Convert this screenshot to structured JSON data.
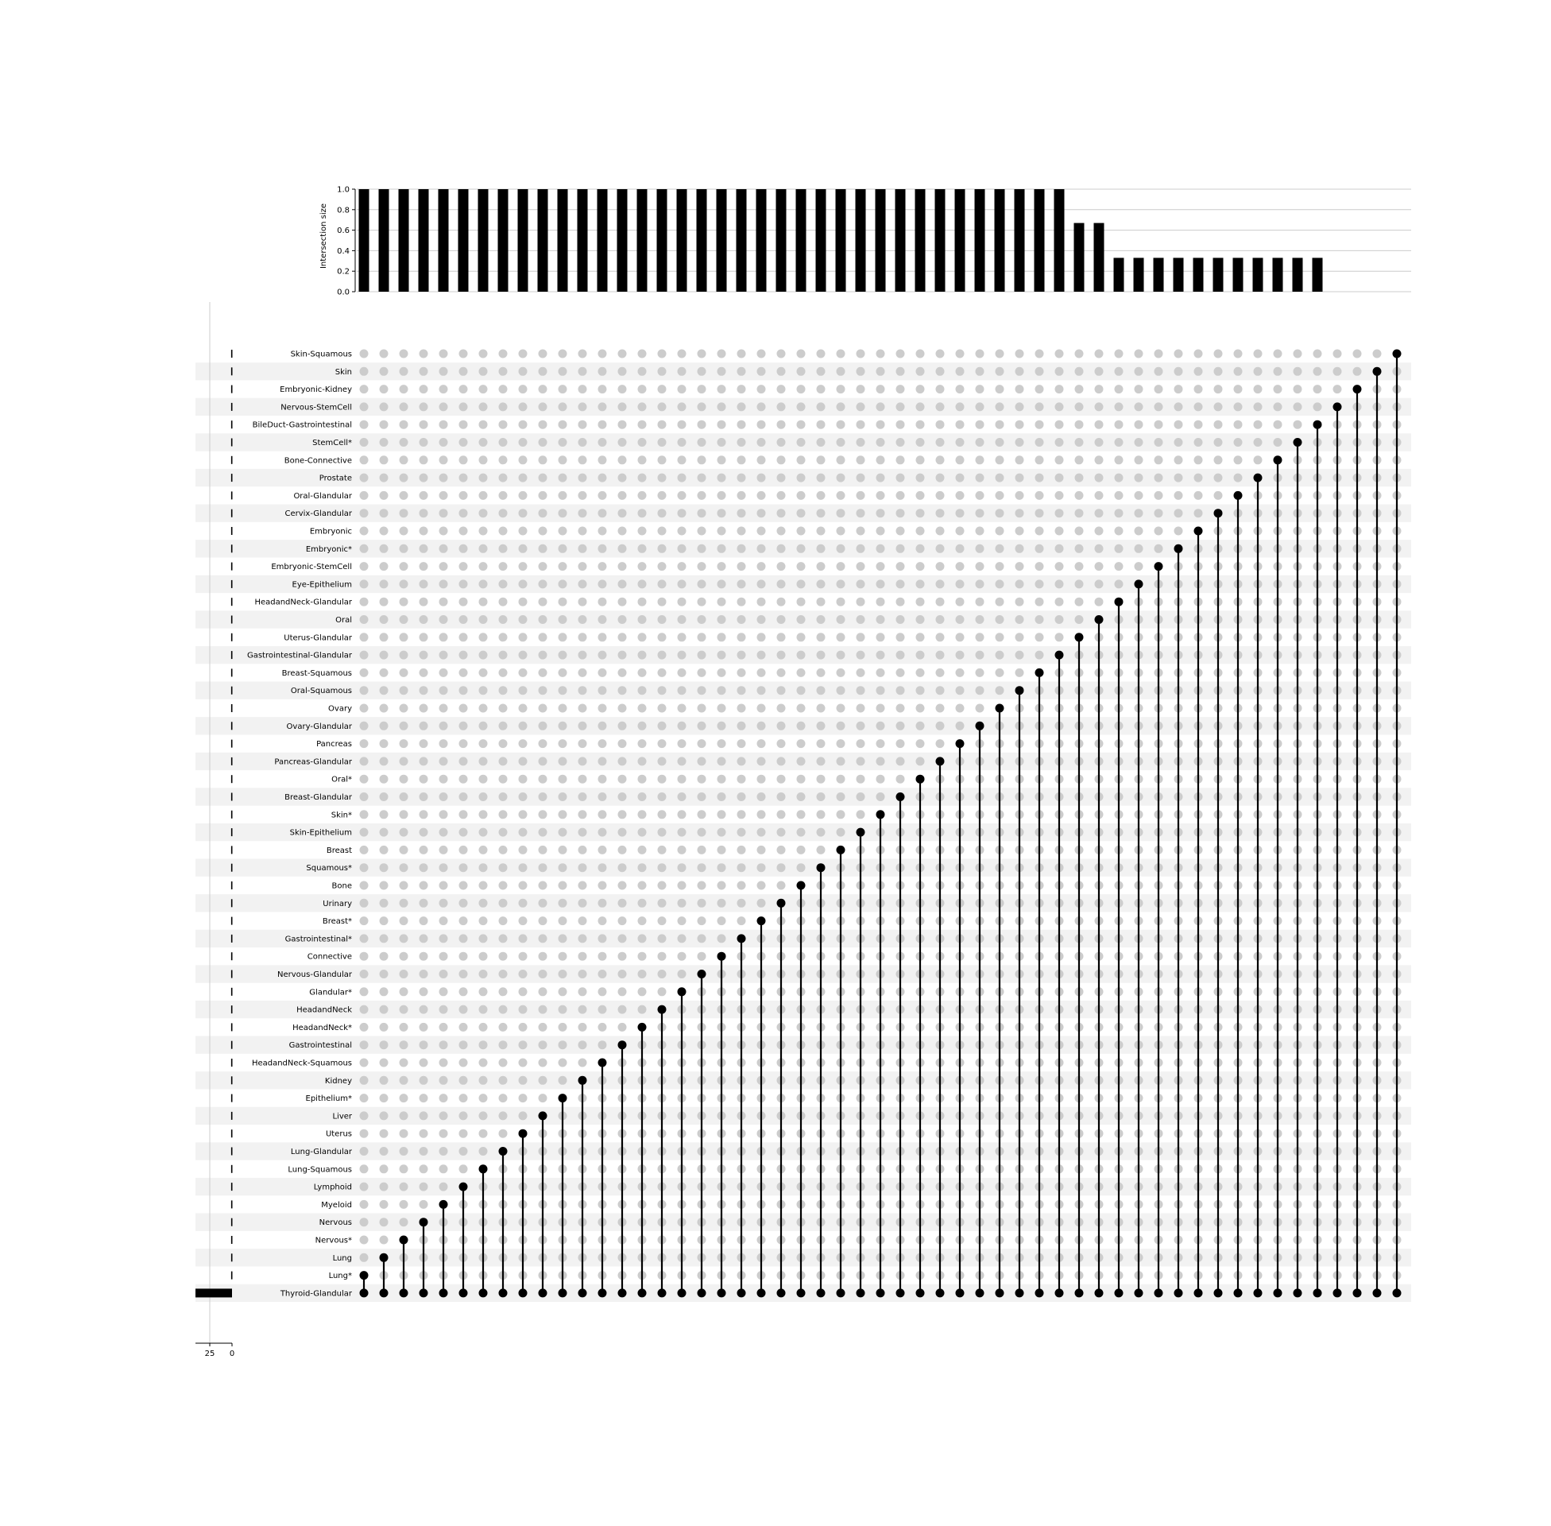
{
  "chart_data": {
    "type": "upset",
    "ylabel": "Intersection size",
    "ylim": [
      0,
      1.0
    ],
    "yticks": [
      "0.0",
      "0.2",
      "0.4",
      "0.6",
      "0.8",
      "1.0"
    ],
    "set_size_ticks": [
      "25",
      "0"
    ],
    "colors": {
      "bar": "#000000",
      "dot_on": "#000000",
      "dot_off": "#cccccc",
      "stripe": "#f2f2f2",
      "grid": "#cccccc"
    },
    "sets": [
      {
        "name": "Skin-Squamous",
        "size": 1
      },
      {
        "name": "Skin",
        "size": 1
      },
      {
        "name": "Embryonic-Kidney",
        "size": 1
      },
      {
        "name": "Nervous-StemCell",
        "size": 1
      },
      {
        "name": "BileDuct-Gastrointestinal",
        "size": 1
      },
      {
        "name": "StemCell*",
        "size": 1
      },
      {
        "name": "Bone-Connective",
        "size": 1
      },
      {
        "name": "Prostate",
        "size": 1
      },
      {
        "name": "Oral-Glandular",
        "size": 1
      },
      {
        "name": "Cervix-Glandular",
        "size": 1
      },
      {
        "name": "Embryonic",
        "size": 1
      },
      {
        "name": "Embryonic*",
        "size": 1
      },
      {
        "name": "Embryonic-StemCell",
        "size": 1
      },
      {
        "name": "Eye-Epithelium",
        "size": 1
      },
      {
        "name": "HeadandNeck-Glandular",
        "size": 1
      },
      {
        "name": "Oral",
        "size": 1
      },
      {
        "name": "Uterus-Glandular",
        "size": 1
      },
      {
        "name": "Gastrointestinal-Glandular",
        "size": 1
      },
      {
        "name": "Breast-Squamous",
        "size": 1
      },
      {
        "name": "Oral-Squamous",
        "size": 1
      },
      {
        "name": "Ovary",
        "size": 1
      },
      {
        "name": "Ovary-Glandular",
        "size": 1
      },
      {
        "name": "Pancreas",
        "size": 1
      },
      {
        "name": "Pancreas-Glandular",
        "size": 1
      },
      {
        "name": "Oral*",
        "size": 1
      },
      {
        "name": "Breast-Glandular",
        "size": 1
      },
      {
        "name": "Skin*",
        "size": 1
      },
      {
        "name": "Skin-Epithelium",
        "size": 1
      },
      {
        "name": "Breast",
        "size": 1
      },
      {
        "name": "Squamous*",
        "size": 1
      },
      {
        "name": "Bone",
        "size": 1
      },
      {
        "name": "Urinary",
        "size": 1
      },
      {
        "name": "Breast*",
        "size": 1
      },
      {
        "name": "Gastrointestinal*",
        "size": 1
      },
      {
        "name": "Connective",
        "size": 1
      },
      {
        "name": "Nervous-Glandular",
        "size": 1
      },
      {
        "name": "Glandular*",
        "size": 1
      },
      {
        "name": "HeadandNeck",
        "size": 1
      },
      {
        "name": "HeadandNeck*",
        "size": 1
      },
      {
        "name": "Gastrointestinal",
        "size": 1
      },
      {
        "name": "HeadandNeck-Squamous",
        "size": 1
      },
      {
        "name": "Kidney",
        "size": 1
      },
      {
        "name": "Epithelium*",
        "size": 1
      },
      {
        "name": "Liver",
        "size": 1
      },
      {
        "name": "Uterus",
        "size": 1
      },
      {
        "name": "Lung-Glandular",
        "size": 1
      },
      {
        "name": "Lung-Squamous",
        "size": 1
      },
      {
        "name": "Lymphoid",
        "size": 1
      },
      {
        "name": "Myeloid",
        "size": 1
      },
      {
        "name": "Nervous",
        "size": 1
      },
      {
        "name": "Nervous*",
        "size": 1
      },
      {
        "name": "Lung",
        "size": 1
      },
      {
        "name": "Lung*",
        "size": 1
      },
      {
        "name": "Thyroid-Glandular",
        "size": 53
      }
    ],
    "intersections": [
      {
        "sets": [
          "Lung*",
          "Thyroid-Glandular"
        ],
        "value": 1.0
      },
      {
        "sets": [
          "Lung",
          "Thyroid-Glandular"
        ],
        "value": 1.0
      },
      {
        "sets": [
          "Nervous*",
          "Thyroid-Glandular"
        ],
        "value": 1.0
      },
      {
        "sets": [
          "Nervous",
          "Thyroid-Glandular"
        ],
        "value": 1.0
      },
      {
        "sets": [
          "Myeloid",
          "Thyroid-Glandular"
        ],
        "value": 1.0
      },
      {
        "sets": [
          "Lymphoid",
          "Thyroid-Glandular"
        ],
        "value": 1.0
      },
      {
        "sets": [
          "Lung-Squamous",
          "Thyroid-Glandular"
        ],
        "value": 1.0
      },
      {
        "sets": [
          "Lung-Glandular",
          "Thyroid-Glandular"
        ],
        "value": 1.0
      },
      {
        "sets": [
          "Uterus",
          "Thyroid-Glandular"
        ],
        "value": 1.0
      },
      {
        "sets": [
          "Liver",
          "Thyroid-Glandular"
        ],
        "value": 1.0
      },
      {
        "sets": [
          "Epithelium*",
          "Thyroid-Glandular"
        ],
        "value": 1.0
      },
      {
        "sets": [
          "Kidney",
          "Thyroid-Glandular"
        ],
        "value": 1.0
      },
      {
        "sets": [
          "HeadandNeck-Squamous",
          "Thyroid-Glandular"
        ],
        "value": 1.0
      },
      {
        "sets": [
          "Gastrointestinal",
          "Thyroid-Glandular"
        ],
        "value": 1.0
      },
      {
        "sets": [
          "HeadandNeck*",
          "Thyroid-Glandular"
        ],
        "value": 1.0
      },
      {
        "sets": [
          "HeadandNeck",
          "Thyroid-Glandular"
        ],
        "value": 1.0
      },
      {
        "sets": [
          "Glandular*",
          "Thyroid-Glandular"
        ],
        "value": 1.0
      },
      {
        "sets": [
          "Nervous-Glandular",
          "Thyroid-Glandular"
        ],
        "value": 1.0
      },
      {
        "sets": [
          "Connective",
          "Thyroid-Glandular"
        ],
        "value": 1.0
      },
      {
        "sets": [
          "Gastrointestinal*",
          "Thyroid-Glandular"
        ],
        "value": 1.0
      },
      {
        "sets": [
          "Breast*",
          "Thyroid-Glandular"
        ],
        "value": 1.0
      },
      {
        "sets": [
          "Urinary",
          "Thyroid-Glandular"
        ],
        "value": 1.0
      },
      {
        "sets": [
          "Bone",
          "Thyroid-Glandular"
        ],
        "value": 1.0
      },
      {
        "sets": [
          "Squamous*",
          "Thyroid-Glandular"
        ],
        "value": 1.0
      },
      {
        "sets": [
          "Breast",
          "Thyroid-Glandular"
        ],
        "value": 1.0
      },
      {
        "sets": [
          "Skin-Epithelium",
          "Thyroid-Glandular"
        ],
        "value": 1.0
      },
      {
        "sets": [
          "Skin*",
          "Thyroid-Glandular"
        ],
        "value": 1.0
      },
      {
        "sets": [
          "Breast-Glandular",
          "Thyroid-Glandular"
        ],
        "value": 1.0
      },
      {
        "sets": [
          "Oral*",
          "Thyroid-Glandular"
        ],
        "value": 1.0
      },
      {
        "sets": [
          "Pancreas-Glandular",
          "Thyroid-Glandular"
        ],
        "value": 1.0
      },
      {
        "sets": [
          "Pancreas",
          "Thyroid-Glandular"
        ],
        "value": 1.0
      },
      {
        "sets": [
          "Ovary-Glandular",
          "Thyroid-Glandular"
        ],
        "value": 1.0
      },
      {
        "sets": [
          "Ovary",
          "Thyroid-Glandular"
        ],
        "value": 1.0
      },
      {
        "sets": [
          "Oral-Squamous",
          "Thyroid-Glandular"
        ],
        "value": 1.0
      },
      {
        "sets": [
          "Breast-Squamous",
          "Thyroid-Glandular"
        ],
        "value": 1.0
      },
      {
        "sets": [
          "Gastrointestinal-Glandular",
          "Thyroid-Glandular"
        ],
        "value": 1.0
      },
      {
        "sets": [
          "Uterus-Glandular",
          "Thyroid-Glandular"
        ],
        "value": 0.67
      },
      {
        "sets": [
          "Oral",
          "Thyroid-Glandular"
        ],
        "value": 0.67
      },
      {
        "sets": [
          "HeadandNeck-Glandular",
          "Thyroid-Glandular"
        ],
        "value": 0.33
      },
      {
        "sets": [
          "Eye-Epithelium",
          "Thyroid-Glandular"
        ],
        "value": 0.33
      },
      {
        "sets": [
          "Embryonic-StemCell",
          "Thyroid-Glandular"
        ],
        "value": 0.33
      },
      {
        "sets": [
          "Embryonic*",
          "Thyroid-Glandular"
        ],
        "value": 0.33
      },
      {
        "sets": [
          "Embryonic",
          "Thyroid-Glandular"
        ],
        "value": 0.33
      },
      {
        "sets": [
          "Cervix-Glandular",
          "Thyroid-Glandular"
        ],
        "value": 0.33
      },
      {
        "sets": [
          "Oral-Glandular",
          "Thyroid-Glandular"
        ],
        "value": 0.33
      },
      {
        "sets": [
          "Prostate",
          "Thyroid-Glandular"
        ],
        "value": 0.33
      },
      {
        "sets": [
          "Bone-Connective",
          "Thyroid-Glandular"
        ],
        "value": 0.33
      },
      {
        "sets": [
          "StemCell*",
          "Thyroid-Glandular"
        ],
        "value": 0.33
      },
      {
        "sets": [
          "BileDuct-Gastrointestinal",
          "Thyroid-Glandular"
        ],
        "value": 0.33
      },
      {
        "sets": [
          "Nervous-StemCell",
          "Thyroid-Glandular"
        ],
        "value": 0.0
      },
      {
        "sets": [
          "Embryonic-Kidney",
          "Thyroid-Glandular"
        ],
        "value": 0.0
      },
      {
        "sets": [
          "Skin",
          "Thyroid-Glandular"
        ],
        "value": 0.0
      },
      {
        "sets": [
          "Skin-Squamous",
          "Thyroid-Glandular"
        ],
        "value": 0.0
      }
    ]
  }
}
